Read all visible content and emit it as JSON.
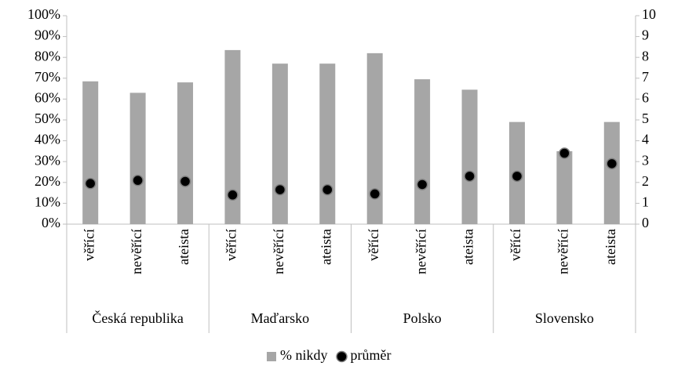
{
  "chart_data": {
    "type": "bar",
    "groups": [
      {
        "name": "Česká republika",
        "categories": [
          "věřící",
          "nevěřící",
          "ateista"
        ]
      },
      {
        "name": "Maďarsko",
        "categories": [
          "věřící",
          "nevěřící",
          "ateista"
        ]
      },
      {
        "name": "Polsko",
        "categories": [
          "věřící",
          "nevěřící",
          "ateista"
        ]
      },
      {
        "name": "Slovensko",
        "categories": [
          "věřící",
          "nevěřící",
          "ateista"
        ]
      }
    ],
    "series": [
      {
        "name": "% nikdy",
        "type": "bar",
        "color": "#a6a6a6",
        "values": [
          68.5,
          63,
          68,
          83.5,
          77,
          77,
          82,
          69.5,
          64.5,
          49,
          35,
          49
        ]
      },
      {
        "name": "průměr",
        "type": "scatter",
        "axis": "y2",
        "color": "#000000",
        "values": [
          1.95,
          2.1,
          2.05,
          1.4,
          1.65,
          1.65,
          1.45,
          1.9,
          2.3,
          2.3,
          3.4,
          2.9
        ]
      }
    ],
    "ylim": [
      0,
      100
    ],
    "yticks": [
      {
        "value": 0,
        "label": "0%"
      },
      {
        "value": 10,
        "label": "10%"
      },
      {
        "value": 20,
        "label": "20%"
      },
      {
        "value": 30,
        "label": "30%"
      },
      {
        "value": 40,
        "label": "40%"
      },
      {
        "value": 50,
        "label": "50%"
      },
      {
        "value": 60,
        "label": "60%"
      },
      {
        "value": 70,
        "label": "70%"
      },
      {
        "value": 80,
        "label": "80%"
      },
      {
        "value": 90,
        "label": "90%"
      },
      {
        "value": 100,
        "label": "100%"
      }
    ],
    "y2lim": [
      0,
      10
    ],
    "y2ticks": [
      0,
      1,
      2,
      3,
      4,
      5,
      6,
      7,
      8,
      9,
      10
    ],
    "grid": false,
    "legend": "bottom"
  }
}
